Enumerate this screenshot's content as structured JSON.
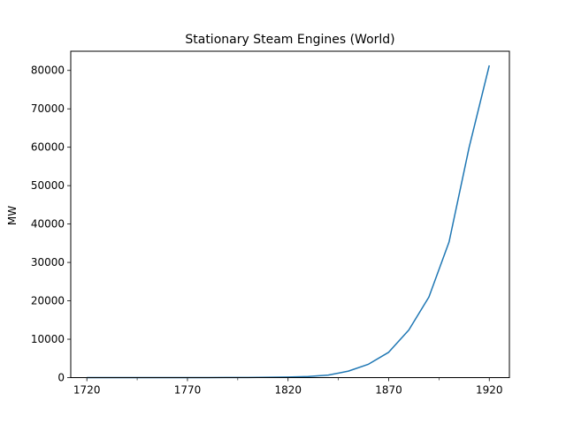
{
  "chart_data": {
    "type": "line",
    "title": "Stationary Steam Engines (World)",
    "xlabel": "",
    "ylabel": "MW",
    "x": [
      1720,
      1730,
      1740,
      1750,
      1760,
      1770,
      1780,
      1790,
      1800,
      1810,
      1820,
      1830,
      1840,
      1850,
      1860,
      1870,
      1880,
      1890,
      1900,
      1910,
      1920
    ],
    "series": [
      {
        "name": "",
        "values": [
          0,
          0,
          0,
          0,
          0,
          0,
          10,
          20,
          40,
          80,
          150,
          300,
          650,
          1700,
          3500,
          6600,
          12400,
          21000,
          35300,
          60000,
          81300
        ]
      }
    ],
    "xlim": [
      1712,
      1930
    ],
    "ylim": [
      0,
      85000
    ],
    "x_ticks": [
      1720,
      1770,
      1820,
      1870,
      1920
    ],
    "x_minor_ticks": [
      1745,
      1795,
      1845,
      1895
    ],
    "y_ticks": [
      0,
      10000,
      20000,
      30000,
      40000,
      50000,
      60000,
      70000,
      80000
    ],
    "line_color": "#1f77b4",
    "grid": false,
    "legend": "none"
  }
}
